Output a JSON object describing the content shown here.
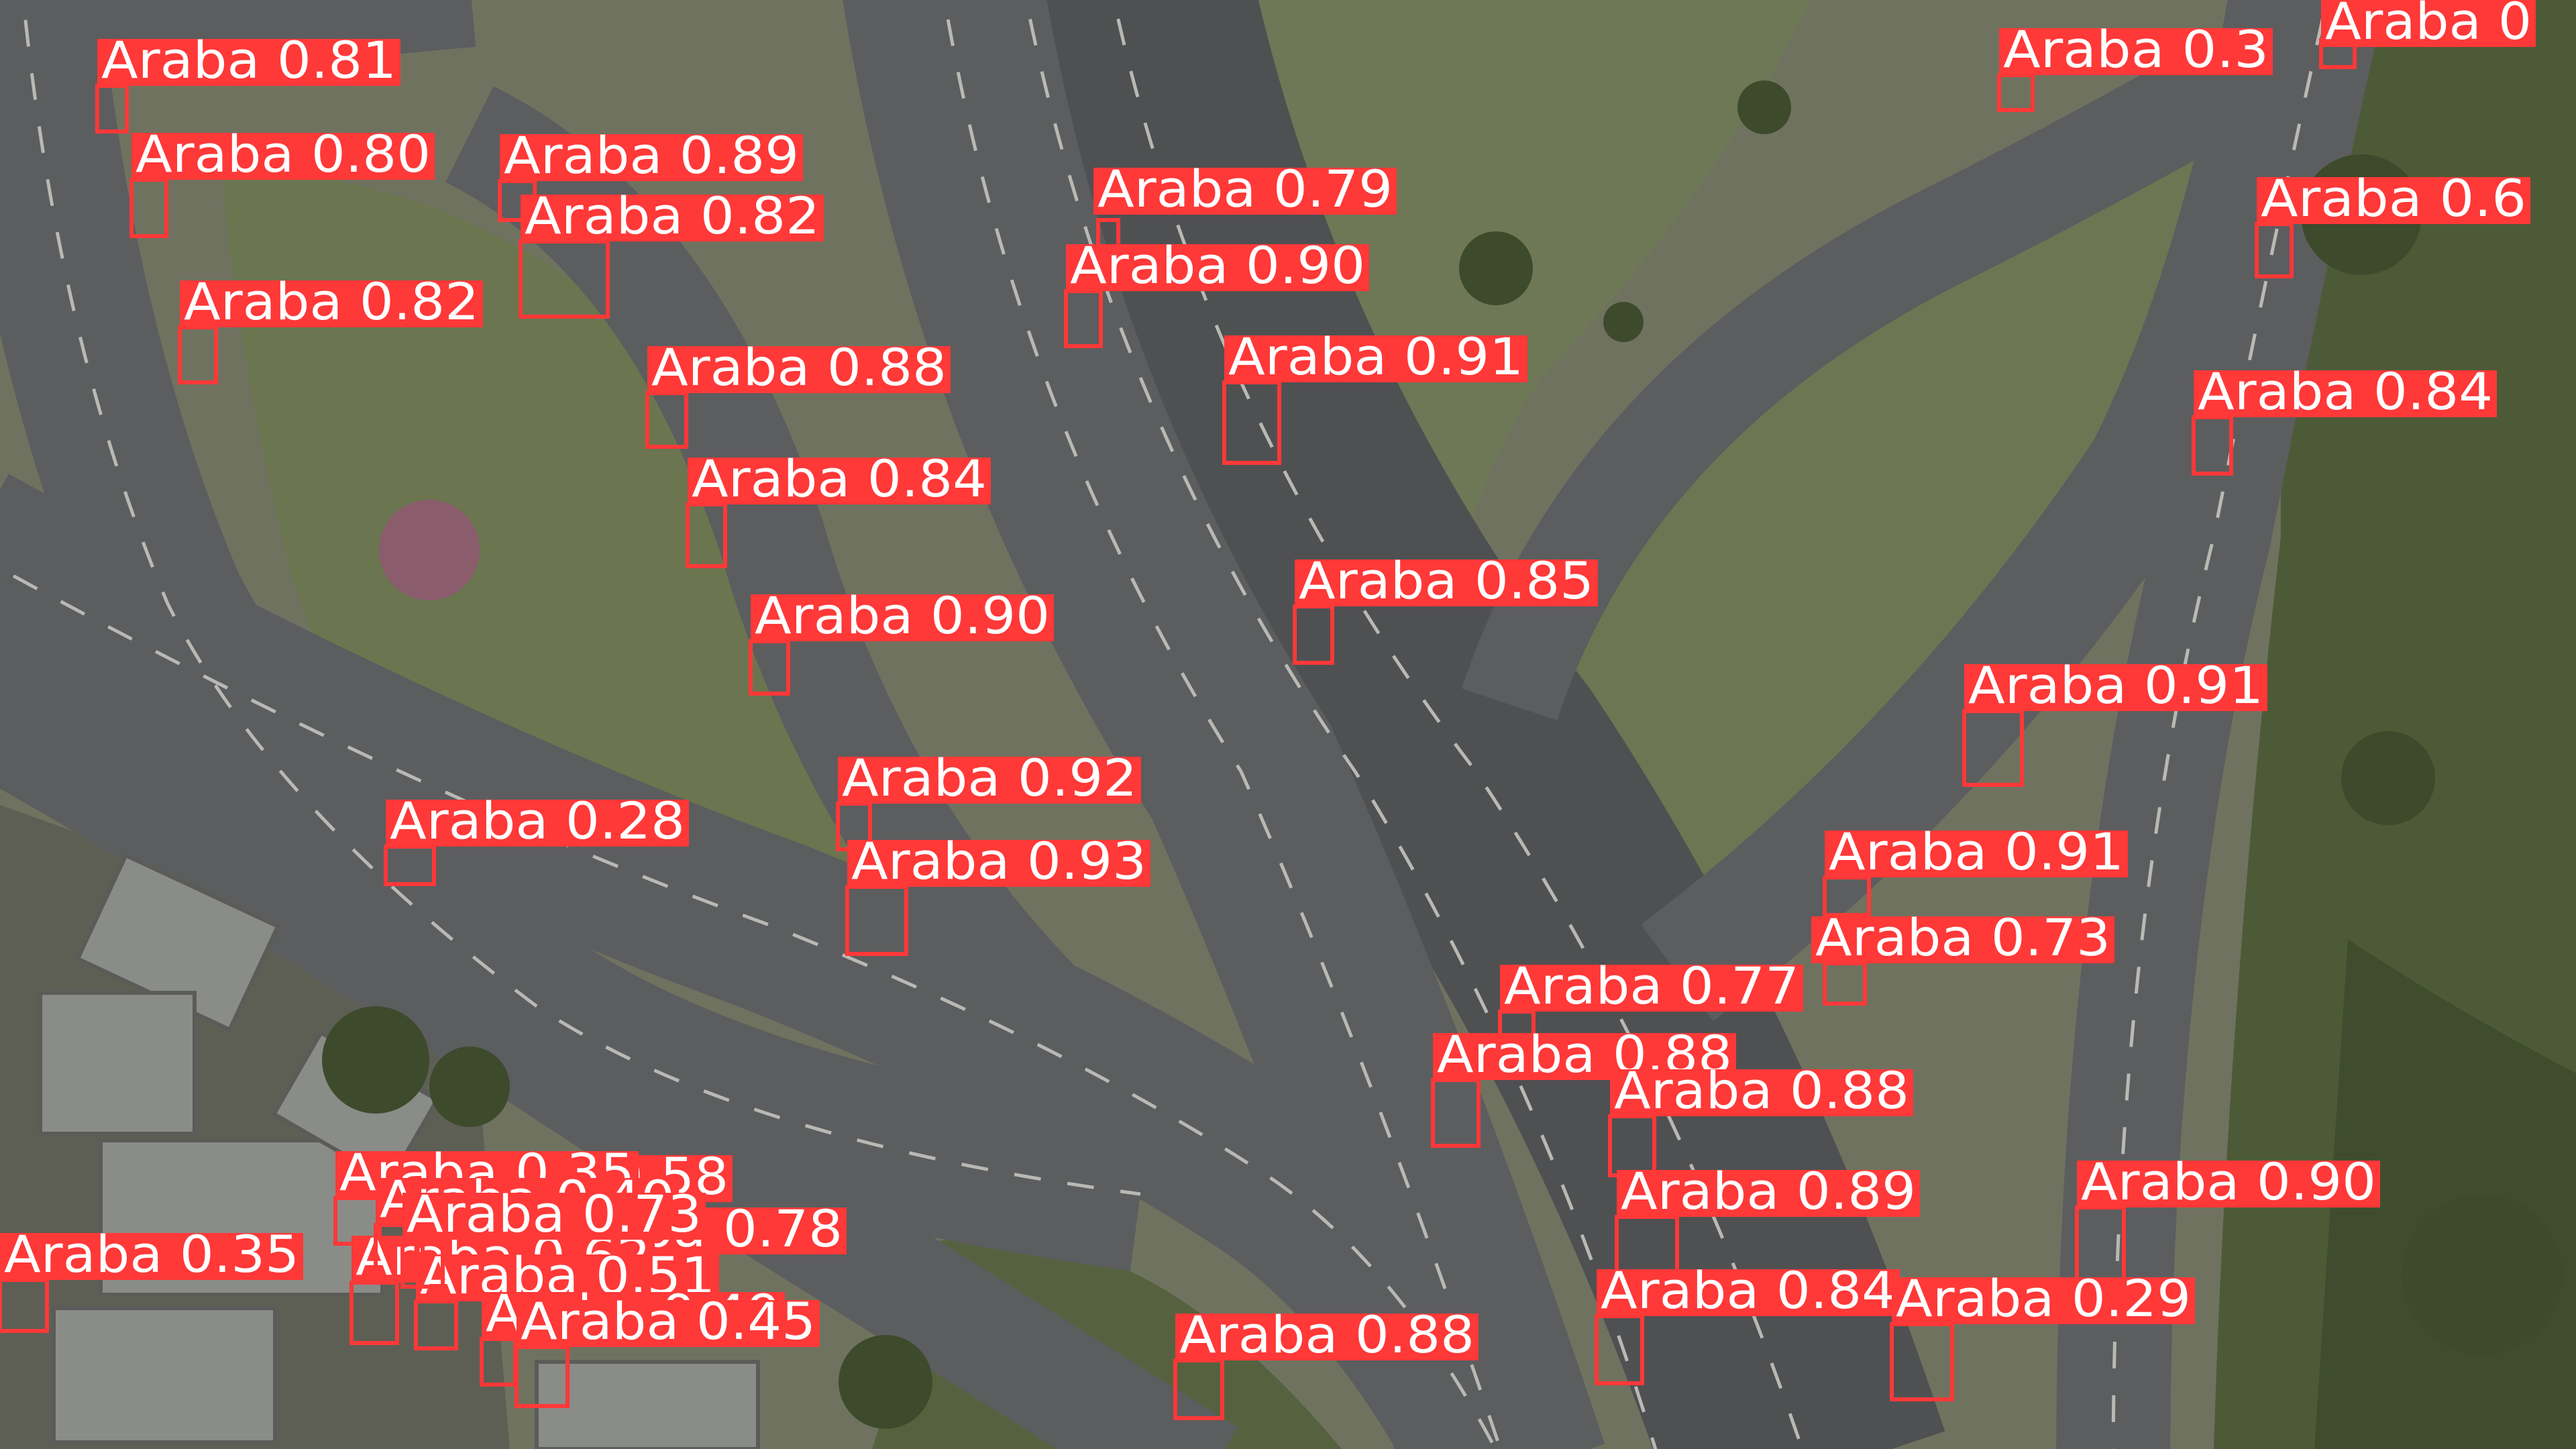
{
  "detection": {
    "box_color": "#ff3838",
    "label_text_color": "#ffffff",
    "class_name": "Araba",
    "labels": [
      "Araba 0.81",
      "Araba 0.80",
      "Araba 0.89",
      "Araba 0.82",
      "Araba 0.82",
      "Araba 0.88",
      "Araba 0.84",
      "Araba 0.90",
      "Araba 0.92",
      "Araba 0.93",
      "Araba 0.28",
      "Araba 0.79",
      "Araba 0.90",
      "Araba 0.91",
      "Araba 0.85",
      "Araba 0.3",
      "Araba 0",
      "Araba 0.6",
      "Araba 0.84",
      "Araba 0.91",
      "Araba 0.91",
      "Araba 0.73",
      "Araba 0.77",
      "Araba 0.88",
      "Araba 0.88",
      "Araba 0.89",
      "Araba 0.90",
      "Araba 0.84",
      "Araba 0.29",
      "Araba 0.88",
      "Araba 0.35",
      "Araba 0.58",
      "Araba 0.35",
      "Araba 0.78",
      "Araba 0.62",
      "Araba 0.51",
      "Araba 0.49",
      "Araba 0.45",
      "Araba 0.40",
      "Araba 0.73"
    ]
  }
}
